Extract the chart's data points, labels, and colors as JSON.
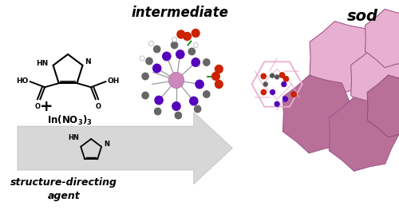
{
  "background_color": "#ffffff",
  "text_intermediate": "intermediate",
  "text_sod": "sod",
  "text_sda": "structure-directing\nagent",
  "pink_light": "#e8b0d0",
  "pink_mid": "#d090b8",
  "pink_dark": "#b87098",
  "edge_pink": "#a05888",
  "purple_color": "#5500bb",
  "gray_color": "#777777",
  "red_color": "#cc2200",
  "green_color": "#007700",
  "fig_width": 5.0,
  "fig_height": 2.78,
  "dpi": 100
}
